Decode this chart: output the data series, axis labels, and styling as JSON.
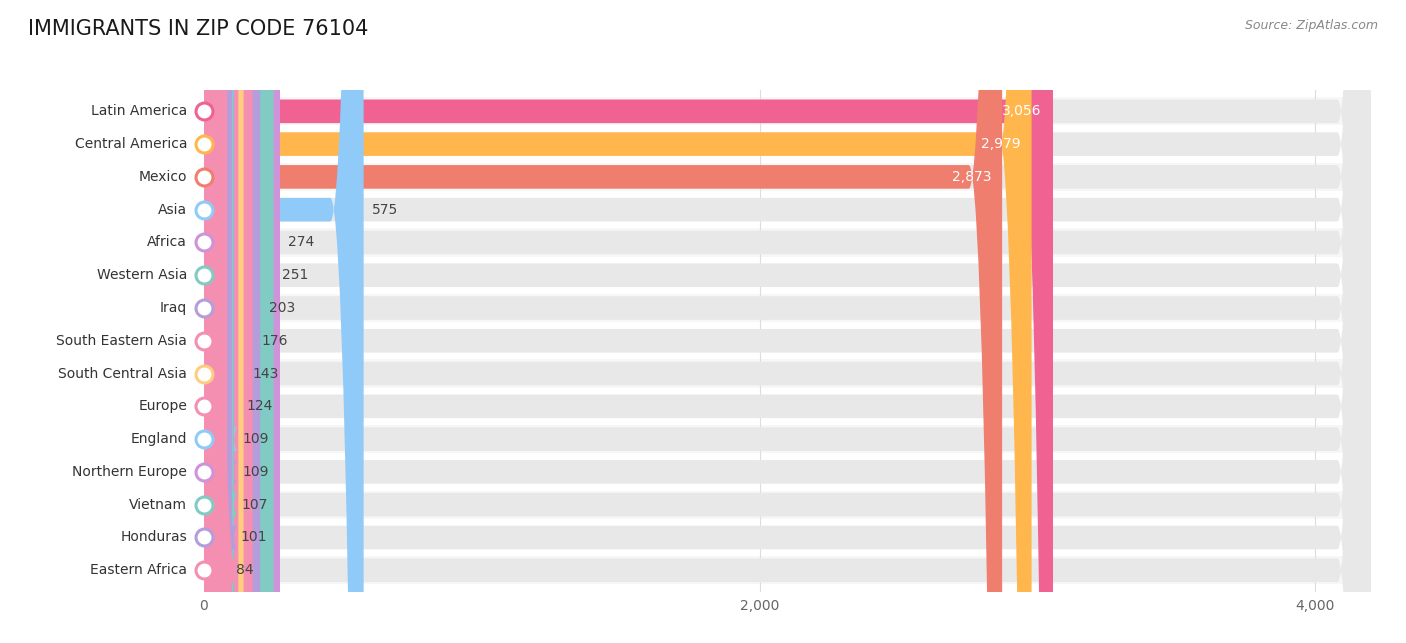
{
  "title": "IMMIGRANTS IN ZIP CODE 76104",
  "source": "Source: ZipAtlas.com",
  "categories": [
    "Latin America",
    "Central America",
    "Mexico",
    "Asia",
    "Africa",
    "Western Asia",
    "Iraq",
    "South Eastern Asia",
    "South Central Asia",
    "Europe",
    "England",
    "Northern Europe",
    "Vietnam",
    "Honduras",
    "Eastern Africa"
  ],
  "values": [
    3056,
    2979,
    2873,
    575,
    274,
    251,
    203,
    176,
    143,
    124,
    109,
    109,
    107,
    101,
    84
  ],
  "colors": [
    "#f06292",
    "#ffb74d",
    "#ef7e6e",
    "#90caf9",
    "#ce93d8",
    "#80cbc4",
    "#b39ddb",
    "#f48fb1",
    "#ffcc80",
    "#f48fb1",
    "#90caf9",
    "#ce93d8",
    "#80cbc4",
    "#b39ddb",
    "#f48fb1"
  ],
  "xlim_max": 4200,
  "background_color": "#ffffff",
  "row_bg_color": "#f0f0f0",
  "bar_bg_color": "#e8e8e8",
  "title_fontsize": 15,
  "label_fontsize": 10,
  "value_fontsize": 10,
  "tick_fontsize": 10,
  "grid_color": "#dddddd"
}
